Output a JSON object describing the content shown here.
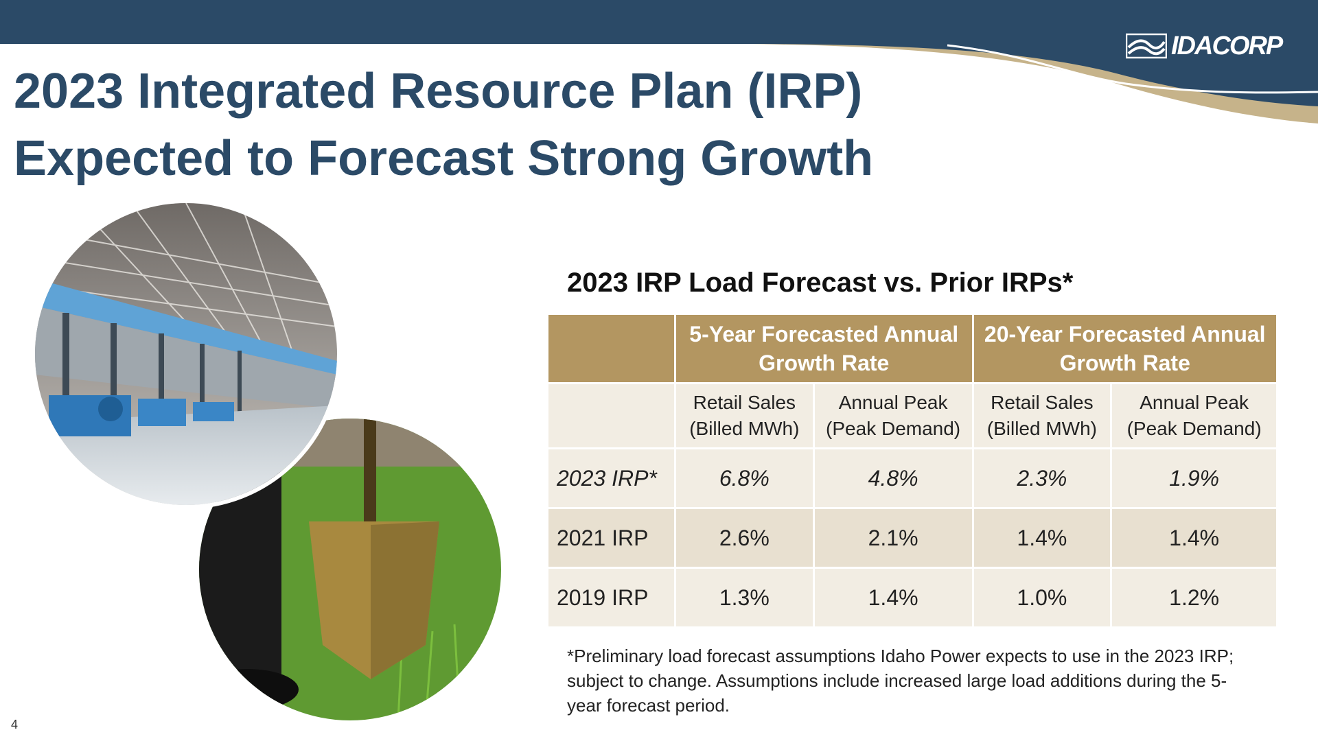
{
  "logo": {
    "text": "IDACORP"
  },
  "title": {
    "line1": "2023 Integrated Resource Plan (IRP)",
    "line2": "Expected to Forecast Strong Growth"
  },
  "table": {
    "title": "2023 IRP Load Forecast vs. Prior IRPs*",
    "group_headers": [
      "5-Year Forecasted Annual Growth Rate",
      "20-Year Forecasted Annual Growth Rate"
    ],
    "sub_headers": [
      "Retail Sales (Billed MWh)",
      "Annual Peak (Peak Demand)",
      "Retail Sales (Billed MWh)",
      "Annual Peak (Peak Demand)"
    ],
    "rows": [
      {
        "label": "2023 IRP*",
        "values": [
          "6.8%",
          "4.8%",
          "2.3%",
          "1.9%"
        ]
      },
      {
        "label": "2021 IRP",
        "values": [
          "2.6%",
          "2.1%",
          "1.4%",
          "1.4%"
        ]
      },
      {
        "label": "2019 IRP",
        "values": [
          "1.3%",
          "1.4%",
          "1.0%",
          "1.2%"
        ]
      }
    ]
  },
  "footnote": "*Preliminary load forecast assumptions Idaho Power expects to use in the 2023 IRP; subject to change. Assumptions include increased large load additions during the 5-year forecast period.",
  "page_number": "4",
  "colors": {
    "navy": "#2b4a67",
    "gold": "#b39661",
    "row_light": "#f2ede3",
    "row_dark": "#e8e0d0"
  }
}
